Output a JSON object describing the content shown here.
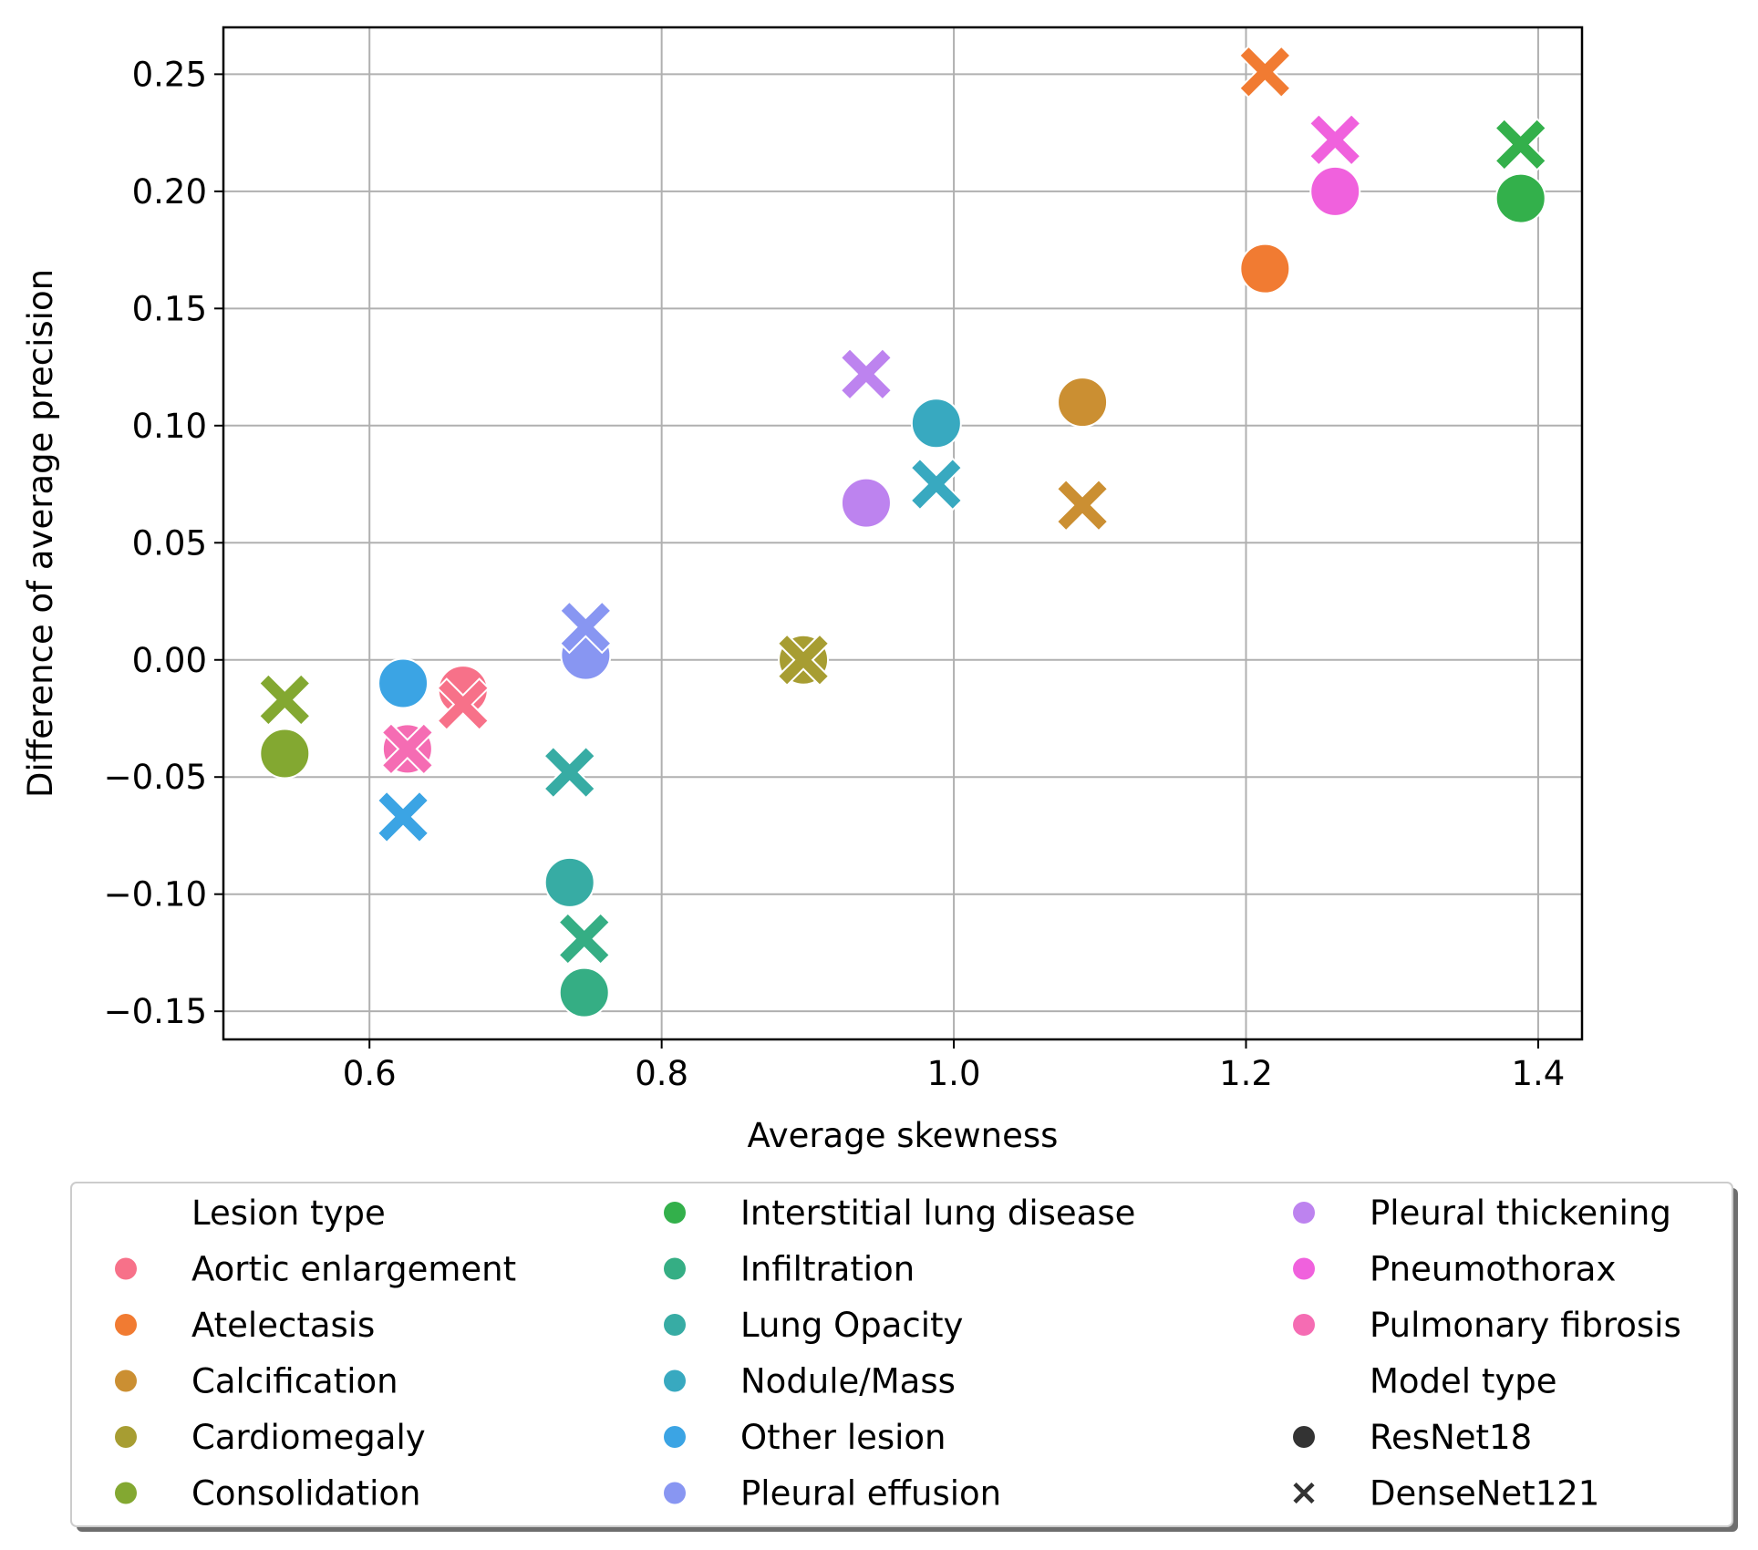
{
  "chart_data": {
    "type": "scatter",
    "xlabel": "Average skewness",
    "ylabel": "Difference of average precision",
    "xlim": [
      0.5,
      1.43
    ],
    "ylim": [
      -0.162,
      0.27
    ],
    "xticks": [
      0.6,
      0.8,
      1.0,
      1.2,
      1.4
    ],
    "xtick_labels": [
      "0.6",
      "0.8",
      "1.0",
      "1.2",
      "1.4"
    ],
    "yticks": [
      0.25,
      0.2,
      0.15,
      0.1,
      0.05,
      0.0,
      -0.05,
      -0.1,
      -0.15
    ],
    "ytick_labels": [
      "0.25",
      "0.20",
      "0.15",
      "0.10",
      "0.05",
      "0.00",
      "−0.05",
      "−0.10",
      "−0.15"
    ],
    "grid": true,
    "legend_position": "below plot",
    "legend_hue_title": "Lesion type",
    "legend_style_title": "Model type",
    "model_types": [
      {
        "name": "ResNet18",
        "marker": "circle"
      },
      {
        "name": "DenseNet121",
        "marker": "x"
      }
    ],
    "series": [
      {
        "name": "Aortic enlargement",
        "color": "#f77189",
        "points": [
          {
            "x": 0.664,
            "y": -0.013,
            "model": "ResNet18"
          },
          {
            "x": 0.664,
            "y": -0.019,
            "model": "DenseNet121"
          }
        ]
      },
      {
        "name": "Atelectasis",
        "color": "#f17b32",
        "points": [
          {
            "x": 1.213,
            "y": 0.167,
            "model": "ResNet18"
          },
          {
            "x": 1.213,
            "y": 0.251,
            "model": "DenseNet121"
          }
        ]
      },
      {
        "name": "Calcification",
        "color": "#cb8f32",
        "points": [
          {
            "x": 1.088,
            "y": 0.11,
            "model": "ResNet18"
          },
          {
            "x": 1.088,
            "y": 0.066,
            "model": "DenseNet121"
          }
        ]
      },
      {
        "name": "Cardiomegaly",
        "color": "#a79d32",
        "points": [
          {
            "x": 0.897,
            "y": 0.0,
            "model": "ResNet18"
          },
          {
            "x": 0.897,
            "y": 0.0,
            "model": "DenseNet121"
          }
        ]
      },
      {
        "name": "Consolidation",
        "color": "#83a831",
        "points": [
          {
            "x": 0.542,
            "y": -0.04,
            "model": "ResNet18"
          },
          {
            "x": 0.542,
            "y": -0.017,
            "model": "DenseNet121"
          }
        ]
      },
      {
        "name": "Interstitial lung disease",
        "color": "#33b04b",
        "points": [
          {
            "x": 1.388,
            "y": 0.197,
            "model": "ResNet18"
          },
          {
            "x": 1.388,
            "y": 0.22,
            "model": "DenseNet121"
          }
        ]
      },
      {
        "name": "Infiltration",
        "color": "#35ae84",
        "points": [
          {
            "x": 0.747,
            "y": -0.142,
            "model": "ResNet18"
          },
          {
            "x": 0.747,
            "y": -0.119,
            "model": "DenseNet121"
          }
        ]
      },
      {
        "name": "Lung Opacity",
        "color": "#37aca4",
        "points": [
          {
            "x": 0.737,
            "y": -0.095,
            "model": "ResNet18"
          },
          {
            "x": 0.737,
            "y": -0.048,
            "model": "DenseNet121"
          }
        ]
      },
      {
        "name": "Nodule/Mass",
        "color": "#38a9c0",
        "points": [
          {
            "x": 0.988,
            "y": 0.101,
            "model": "ResNet18"
          },
          {
            "x": 0.988,
            "y": 0.075,
            "model": "DenseNet121"
          }
        ]
      },
      {
        "name": "Other lesion",
        "color": "#3ba4e4",
        "points": [
          {
            "x": 0.623,
            "y": -0.01,
            "model": "ResNet18"
          },
          {
            "x": 0.623,
            "y": -0.067,
            "model": "DenseNet121"
          }
        ]
      },
      {
        "name": "Pleural effusion",
        "color": "#8896f2",
        "points": [
          {
            "x": 0.748,
            "y": 0.002,
            "model": "ResNet18"
          },
          {
            "x": 0.748,
            "y": 0.014,
            "model": "DenseNet121"
          }
        ]
      },
      {
        "name": "Pleural thickening",
        "color": "#bd83ef",
        "points": [
          {
            "x": 0.94,
            "y": 0.067,
            "model": "ResNet18"
          },
          {
            "x": 0.94,
            "y": 0.122,
            "model": "DenseNet121"
          }
        ]
      },
      {
        "name": "Pneumothorax",
        "color": "#f061dd",
        "points": [
          {
            "x": 1.261,
            "y": 0.2,
            "model": "ResNet18"
          },
          {
            "x": 1.261,
            "y": 0.222,
            "model": "DenseNet121"
          }
        ]
      },
      {
        "name": "Pulmonary fibrosis",
        "color": "#f56cb3",
        "points": [
          {
            "x": 0.626,
            "y": -0.038,
            "model": "ResNet18"
          },
          {
            "x": 0.626,
            "y": -0.038,
            "model": "DenseNet121"
          }
        ]
      }
    ]
  }
}
